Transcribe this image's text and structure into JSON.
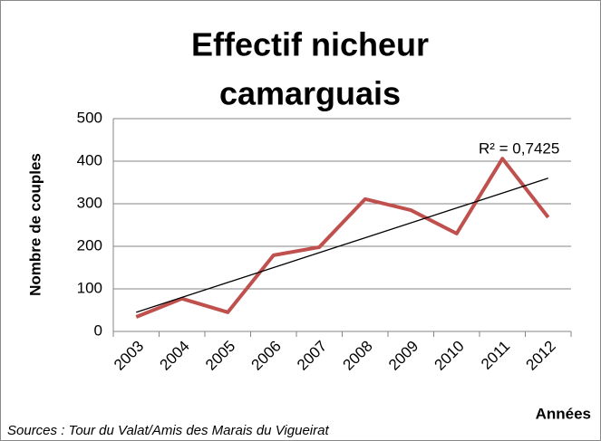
{
  "chart_data": {
    "type": "line",
    "title": [
      "Effectif nicheur",
      "camarguais"
    ],
    "y_label": "Nombre de couples",
    "x_label": "Années",
    "source": "Sources : Tour du Valat/Amis des Marais du Vigueirat",
    "categories": [
      "2003",
      "2004",
      "2005",
      "2006",
      "2007",
      "2008",
      "2009",
      "2010",
      "2011",
      "2012"
    ],
    "series": [
      {
        "name": "Effectif",
        "color": "#c0504d",
        "values": [
          34,
          77,
          45,
          179,
          198,
          311,
          285,
          230,
          406,
          268
        ]
      }
    ],
    "trendline": {
      "label": "R² = 0,7425",
      "color": "#000000",
      "values": [
        45,
        360
      ]
    },
    "ylim": [
      0,
      500
    ],
    "yticks": [
      0,
      100,
      200,
      300,
      400,
      500
    ],
    "grid": true
  }
}
